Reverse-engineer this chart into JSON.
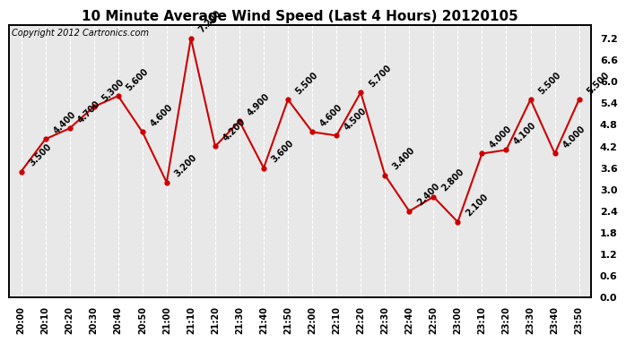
{
  "title": "10 Minute Average Wind Speed (Last 4 Hours) 20120105",
  "copyright": "Copyright 2012 Cartronics.com",
  "x_labels": [
    "20:00",
    "20:10",
    "20:20",
    "20:30",
    "20:40",
    "20:50",
    "21:00",
    "21:10",
    "21:20",
    "21:30",
    "21:40",
    "21:50",
    "22:00",
    "22:10",
    "22:20",
    "22:30",
    "22:40",
    "22:50",
    "23:00",
    "23:10",
    "23:20",
    "23:30",
    "23:40",
    "23:50"
  ],
  "y_values": [
    3.5,
    4.4,
    4.7,
    5.3,
    5.6,
    4.6,
    3.2,
    7.2,
    4.2,
    4.9,
    3.6,
    5.5,
    4.6,
    4.5,
    5.7,
    3.4,
    2.4,
    2.8,
    2.1,
    4.0,
    4.1,
    5.5,
    4.0,
    5.5
  ],
  "y_annotation_labels": [
    "3.500",
    "4.400",
    "4.700",
    "5.300",
    "5.600",
    "4.600",
    "3.200",
    "7.200",
    "4.200",
    "4.900",
    "3.600",
    "5.500",
    "4.600",
    "4.500",
    "5.700",
    "3.400",
    "2.400",
    "2.800",
    "2.100",
    "4.000",
    "4.100",
    "5.500",
    "4.000",
    "5.500"
  ],
  "ylim": [
    0.0,
    7.56
  ],
  "yticks": [
    0.0,
    0.6,
    1.2,
    1.8,
    2.4,
    3.0,
    3.6,
    4.2,
    4.8,
    5.4,
    6.0,
    6.6,
    7.2
  ],
  "line_color": "#cc0000",
  "marker_color": "#cc0000",
  "bg_color": "#ffffff",
  "plot_bg_color": "#e8e8e8",
  "grid_color": "#ffffff",
  "title_fontsize": 11,
  "annotation_fontsize": 7,
  "copyright_fontsize": 7,
  "xtick_fontsize": 7,
  "ytick_fontsize": 8
}
